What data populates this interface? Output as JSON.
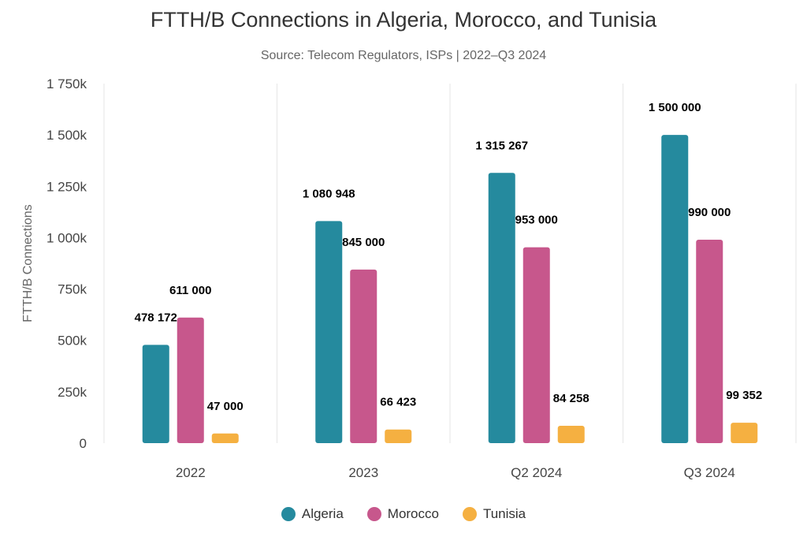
{
  "chart_data": {
    "type": "bar",
    "title": "FTTH/B Connections in Algeria, Morocco, and Tunisia",
    "subtitle": "Source: Telecom Regulators, ISPs | 2022–Q3 2024",
    "ylabel": "FTTH/B Connections",
    "xlabel": "",
    "categories": [
      "2022",
      "2023",
      "Q2 2024",
      "Q3 2024"
    ],
    "ylim": [
      0,
      1750000
    ],
    "yticks": [
      0,
      250000,
      500000,
      750000,
      1000000,
      1250000,
      1500000,
      1750000
    ],
    "ytick_labels": [
      "0",
      "250k",
      "500k",
      "750k",
      "1 000k",
      "1 250k",
      "1 500k",
      "1 750k"
    ],
    "series": [
      {
        "name": "Algeria",
        "color": "#258a9e",
        "values": [
          478172,
          1080948,
          1315267,
          1500000
        ],
        "labels": [
          "478 172",
          "1 080 948",
          "1 315 267",
          "1 500 000"
        ]
      },
      {
        "name": "Morocco",
        "color": "#c7578c",
        "values": [
          611000,
          845000,
          953000,
          990000
        ],
        "labels": [
          "611 000",
          "845 000",
          "953 000",
          "990 000"
        ]
      },
      {
        "name": "Tunisia",
        "color": "#f5b041",
        "values": [
          47000,
          66423,
          84258,
          99352
        ],
        "labels": [
          "47 000",
          "66 423",
          "84 258",
          "99 352"
        ]
      }
    ],
    "grid": "vertical-category-separators",
    "legend_position": "bottom-center"
  }
}
